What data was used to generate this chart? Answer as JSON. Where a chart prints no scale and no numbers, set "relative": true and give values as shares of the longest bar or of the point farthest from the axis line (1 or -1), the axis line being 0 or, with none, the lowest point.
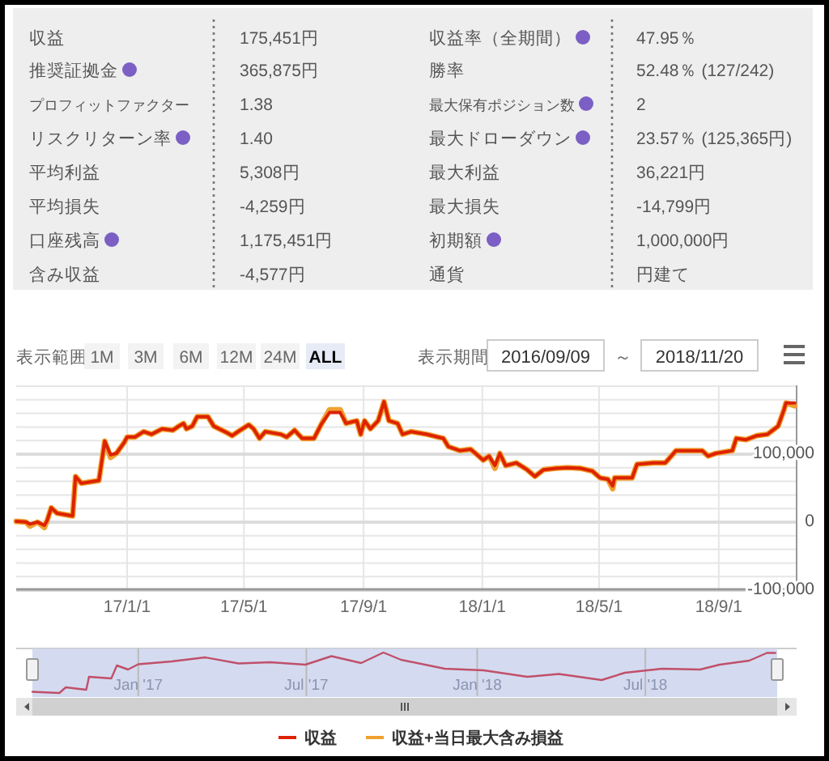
{
  "chart_data": [
    {
      "type": "other",
      "annotations": [
        "収益",
        "175,451円",
        "収益率（全期間）",
        "47.95％",
        "推奨証拠金",
        "365,875円",
        "勝率",
        "52.48％ (127/242)",
        "プロフィットファクター",
        "1.38",
        "最大保有ポジション数",
        "2",
        "リスクリターン率",
        "1.40",
        "最大ドローダウン",
        "23.57％ (125,365円)",
        "平均利益",
        "5,308円",
        "最大利益",
        "36,221円",
        "平均損失",
        "-4,259円",
        "最大損失",
        "-14,799円",
        "口座残高",
        "1,175,451円",
        "初期額",
        "1,000,000円",
        "含み収益",
        "-4,577円",
        "通貨",
        "円建て"
      ]
    },
    {
      "type": "line",
      "x": [
        "2016-09-09",
        "2016-09-19",
        "2016-09-23",
        "2016-10-01",
        "2016-10-08",
        "2016-10-11",
        "2016-10-15",
        "2016-10-21",
        "2016-11-06",
        "2016-11-09",
        "2016-11-15",
        "2016-12-03",
        "2016-12-09",
        "2016-12-15",
        "2016-12-21",
        "2016-12-29",
        "2017-01-01",
        "2017-01-09",
        "2017-01-18",
        "2017-01-26",
        "2017-02-06",
        "2017-02-17",
        "2017-02-23",
        "2017-02-28",
        "2017-03-03",
        "2017-03-09",
        "2017-03-14",
        "2017-03-25",
        "2017-03-31",
        "2017-04-14",
        "2017-04-19",
        "2017-04-25",
        "2017-05-06",
        "2017-05-11",
        "2017-05-17",
        "2017-05-23",
        "2017-06-08",
        "2017-06-14",
        "2017-06-22",
        "2017-06-30",
        "2017-07-12",
        "2017-07-20",
        "2017-07-28",
        "2017-08-08",
        "2017-08-14",
        "2017-08-25",
        "2017-08-29",
        "2017-09-02",
        "2017-09-08",
        "2017-09-16",
        "2017-09-22",
        "2017-09-27",
        "2017-10-06",
        "2017-10-11",
        "2017-10-20",
        "2017-11-05",
        "2017-11-22",
        "2017-11-27",
        "2017-12-09",
        "2017-12-20",
        "2017-12-25",
        "2018-01-02",
        "2018-01-08",
        "2018-01-14",
        "2018-01-19",
        "2018-01-25",
        "2018-02-05",
        "2018-02-16",
        "2018-02-24",
        "2018-03-05",
        "2018-03-18",
        "2018-03-30",
        "2018-04-12",
        "2018-04-24",
        "2018-05-02",
        "2018-05-10",
        "2018-05-15",
        "2018-05-17",
        "2018-06-04",
        "2018-06-09",
        "2018-06-26",
        "2018-07-08",
        "2018-07-19",
        "2018-08-15",
        "2018-08-21",
        "2018-08-29",
        "2018-09-15",
        "2018-09-19",
        "2018-09-29",
        "2018-10-10",
        "2018-10-21",
        "2018-11-01",
        "2018-11-07",
        "2018-11-09",
        "2018-11-18"
      ],
      "series": [
        {
          "name": "収益+当日最大含み損益",
          "color": "#f0a030",
          "values": [
            0,
            -1000,
            -7000,
            -1000,
            -9000,
            2000,
            20000,
            12000,
            8000,
            66000,
            56000,
            60000,
            118000,
            94000,
            100000,
            116000,
            124000,
            124000,
            132000,
            128000,
            136000,
            134000,
            140000,
            144000,
            136000,
            140000,
            154000,
            154000,
            140000,
            130000,
            126000,
            132000,
            142000,
            136000,
            122000,
            132000,
            128000,
            124000,
            134000,
            122000,
            122000,
            144000,
            164000,
            164000,
            144000,
            148000,
            128000,
            148000,
            136000,
            148000,
            176000,
            148000,
            144000,
            128000,
            132000,
            128000,
            122000,
            110000,
            104000,
            106000,
            100000,
            90000,
            96000,
            78000,
            100000,
            82000,
            86000,
            76000,
            66000,
            76000,
            78000,
            79000,
            78000,
            74000,
            64000,
            62000,
            48000,
            64000,
            64000,
            84000,
            86000,
            86000,
            104000,
            104000,
            96000,
            100000,
            104000,
            122000,
            120000,
            126000,
            128000,
            140000,
            164000,
            174000,
            170000
          ]
        },
        {
          "name": "収益",
          "color": "#dd2200",
          "values": [
            0,
            -1000,
            -4000,
            -1000,
            -6000,
            2000,
            20000,
            12000,
            8000,
            66000,
            56000,
            60000,
            118000,
            98000,
            100000,
            116000,
            124000,
            124000,
            132000,
            128000,
            136000,
            134000,
            140000,
            144000,
            136000,
            140000,
            154000,
            154000,
            140000,
            130000,
            126000,
            132000,
            142000,
            136000,
            122000,
            132000,
            128000,
            124000,
            134000,
            122000,
            122000,
            144000,
            160000,
            160000,
            144000,
            148000,
            128000,
            148000,
            136000,
            148000,
            176000,
            148000,
            144000,
            128000,
            132000,
            128000,
            122000,
            110000,
            104000,
            106000,
            100000,
            90000,
            96000,
            82000,
            100000,
            82000,
            86000,
            76000,
            66000,
            76000,
            78000,
            79000,
            78000,
            74000,
            64000,
            62000,
            52000,
            64000,
            64000,
            84000,
            86000,
            86000,
            104000,
            104000,
            96000,
            100000,
            104000,
            122000,
            120000,
            126000,
            128000,
            140000,
            164000,
            174000,
            174000
          ]
        }
      ],
      "xlim": [
        "2016-09-09",
        "2018-11-20"
      ],
      "xticks": [
        {
          "value": "2017-01-01",
          "label": "17/1/1"
        },
        {
          "value": "2017-05-01",
          "label": "17/5/1"
        },
        {
          "value": "2017-09-01",
          "label": "17/9/1"
        },
        {
          "value": "2018-01-01",
          "label": "18/1/1"
        },
        {
          "value": "2018-05-01",
          "label": "18/5/1"
        },
        {
          "value": "2018-09-01",
          "label": "18/9/1"
        }
      ],
      "ylim": [
        -100000,
        200000
      ],
      "yticks": [
        {
          "value": -100000,
          "label": "-100,000"
        },
        {
          "value": -80000,
          "label": null
        },
        {
          "value": -60000,
          "label": null
        },
        {
          "value": -40000,
          "label": null
        },
        {
          "value": -20000,
          "label": null
        },
        0,
        {
          "value": 20000,
          "label": null
        },
        {
          "value": 40000,
          "label": null
        },
        {
          "value": 60000,
          "label": null
        },
        {
          "value": 80000,
          "label": null
        },
        {
          "value": 100000,
          "label": "100,000"
        },
        {
          "value": 120000,
          "label": null
        },
        {
          "value": 140000,
          "label": null
        },
        {
          "value": 160000,
          "label": null
        },
        {
          "value": 180000,
          "label": null
        },
        {
          "value": 200000,
          "label": null
        }
      ],
      "grid": true,
      "legend": "bottom",
      "annotations": [
        "表示範囲",
        "1M",
        "3M",
        "6M",
        "12M",
        "24M",
        "ALL",
        "表示期間",
        "2016/09/09",
        "～",
        "2018/11/20"
      ]
    },
    {
      "type": "line",
      "relative": true,
      "x": [
        "2016-09-09",
        "2016-10-08",
        "2016-10-15",
        "2016-11-06",
        "2016-11-09",
        "2016-12-03",
        "2016-12-09",
        "2016-12-21",
        "2017-01-01",
        "2017-02-06",
        "2017-03-14",
        "2017-04-19",
        "2017-05-23",
        "2017-06-30",
        "2017-07-28",
        "2017-08-29",
        "2017-09-22",
        "2017-10-11",
        "2017-11-27",
        "2018-01-08",
        "2018-02-24",
        "2018-03-30",
        "2018-05-15",
        "2018-06-09",
        "2018-07-19",
        "2018-08-29",
        "2018-09-19",
        "2018-10-21",
        "2018-11-09",
        "2018-11-18"
      ],
      "series": [
        {
          "color": "#c0506a",
          "values": [
            0.03,
            0,
            0.14,
            0.08,
            0.4,
            0.36,
            0.68,
            0.58,
            0.71,
            0.78,
            0.88,
            0.73,
            0.76,
            0.7,
            0.91,
            0.74,
            1,
            0.82,
            0.6,
            0.56,
            0.4,
            0.47,
            0.32,
            0.5,
            0.6,
            0.58,
            0.7,
            0.8,
            0.99,
            0.99
          ]
        }
      ],
      "xlim": [
        "2016-09-09",
        "2018-11-20"
      ],
      "xticks": [
        {
          "value": "2017-01-01",
          "label": "Jan '17"
        },
        {
          "value": "2017-07-01",
          "label": "Jul '17"
        },
        {
          "value": "2018-01-01",
          "label": "Jan '18"
        },
        {
          "value": "2018-07-01",
          "label": "Jul '18"
        }
      ],
      "grid": "x"
    }
  ]
}
